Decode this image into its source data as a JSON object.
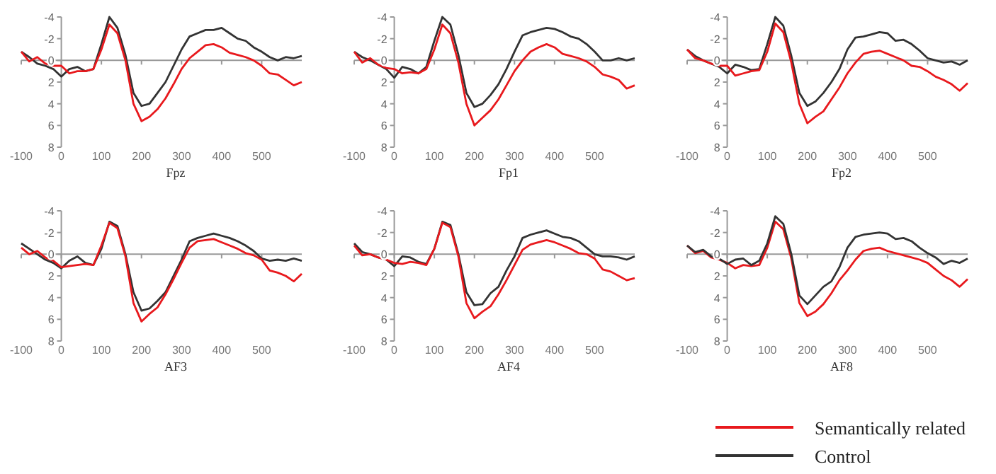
{
  "chart_data": [
    {
      "type": "line",
      "xlabel": "Fpz",
      "x": [
        -100,
        -80,
        -60,
        -40,
        -20,
        0,
        20,
        40,
        60,
        80,
        100,
        120,
        140,
        160,
        180,
        200,
        220,
        240,
        260,
        280,
        300,
        320,
        340,
        360,
        380,
        400,
        420,
        440,
        460,
        480,
        500,
        520,
        540,
        560,
        580,
        600
      ],
      "xlim": [
        -100,
        600
      ],
      "ylim": [
        8,
        -4
      ],
      "xticks": [
        -100,
        0,
        100,
        200,
        300,
        400,
        500
      ],
      "yticks": [
        -4,
        -2,
        0,
        2,
        4,
        6,
        8
      ],
      "series": [
        {
          "color": "#333333",
          "values": [
            -0.8,
            -0.3,
            0.3,
            0.5,
            0.8,
            1.5,
            0.8,
            0.6,
            1.0,
            0.8,
            -1.5,
            -4.0,
            -3.0,
            -0.5,
            3.0,
            4.2,
            4.0,
            3.0,
            2.0,
            0.5,
            -1.0,
            -2.2,
            -2.5,
            -2.8,
            -2.8,
            -3.0,
            -2.5,
            -2.0,
            -1.8,
            -1.2,
            -0.8,
            -0.3,
            0.0,
            -0.3,
            -0.2,
            -0.4
          ]
        },
        {
          "color": "#e8191d",
          "values": [
            -0.8,
            0.1,
            -0.3,
            0.3,
            0.5,
            0.5,
            1.2,
            1.0,
            1.0,
            0.8,
            -1.0,
            -3.3,
            -2.5,
            0.0,
            4.0,
            5.6,
            5.2,
            4.5,
            3.5,
            2.2,
            0.8,
            -0.2,
            -0.8,
            -1.4,
            -1.5,
            -1.2,
            -0.7,
            -0.5,
            -0.3,
            0.0,
            0.5,
            1.2,
            1.3,
            1.8,
            2.3,
            2.0
          ]
        }
      ]
    },
    {
      "type": "line",
      "xlabel": "Fp1",
      "x": [
        -100,
        -80,
        -60,
        -40,
        -20,
        0,
        20,
        40,
        60,
        80,
        100,
        120,
        140,
        160,
        180,
        200,
        220,
        240,
        260,
        280,
        300,
        320,
        340,
        360,
        380,
        400,
        420,
        440,
        460,
        480,
        500,
        520,
        540,
        560,
        580,
        600
      ],
      "xlim": [
        -100,
        600
      ],
      "ylim": [
        8,
        -4
      ],
      "xticks": [
        -100,
        0,
        100,
        200,
        300,
        400,
        500
      ],
      "yticks": [
        -4,
        -2,
        0,
        2,
        4,
        6,
        8
      ],
      "series": [
        {
          "color": "#333333",
          "values": [
            -0.8,
            -0.3,
            0.0,
            0.4,
            0.8,
            1.6,
            0.6,
            0.8,
            1.2,
            0.6,
            -1.8,
            -4.0,
            -3.3,
            -0.5,
            3.0,
            4.3,
            4.0,
            3.2,
            2.2,
            0.8,
            -0.8,
            -2.3,
            -2.6,
            -2.8,
            -3.0,
            -2.9,
            -2.6,
            -2.2,
            -2.0,
            -1.5,
            -0.8,
            0.0,
            0.0,
            -0.2,
            0.0,
            -0.2
          ]
        },
        {
          "color": "#e8191d",
          "values": [
            -0.8,
            0.2,
            -0.2,
            0.4,
            0.7,
            0.8,
            1.2,
            1.1,
            1.2,
            0.8,
            -1.0,
            -3.3,
            -2.5,
            0.2,
            4.0,
            6.0,
            5.3,
            4.6,
            3.6,
            2.3,
            1.0,
            0.0,
            -0.8,
            -1.2,
            -1.5,
            -1.2,
            -0.6,
            -0.4,
            -0.2,
            0.1,
            0.6,
            1.3,
            1.5,
            1.8,
            2.6,
            2.3
          ]
        }
      ]
    },
    {
      "type": "line",
      "xlabel": "Fp2",
      "x": [
        -100,
        -80,
        -60,
        -40,
        -20,
        0,
        20,
        40,
        60,
        80,
        100,
        120,
        140,
        160,
        180,
        200,
        220,
        240,
        260,
        280,
        300,
        320,
        340,
        360,
        380,
        400,
        420,
        440,
        460,
        480,
        500,
        520,
        540,
        560,
        580,
        600
      ],
      "xlim": [
        -100,
        600
      ],
      "ylim": [
        8,
        -4
      ],
      "xticks": [
        -100,
        0,
        100,
        200,
        300,
        400,
        500
      ],
      "yticks": [
        -4,
        -2,
        0,
        2,
        4,
        6,
        8
      ],
      "series": [
        {
          "color": "#333333",
          "values": [
            -1.0,
            -0.4,
            0.0,
            0.3,
            0.6,
            1.2,
            0.4,
            0.6,
            0.9,
            0.8,
            -1.5,
            -4.0,
            -3.2,
            -0.4,
            3.0,
            4.2,
            3.8,
            3.0,
            2.0,
            0.8,
            -1.0,
            -2.1,
            -2.2,
            -2.4,
            -2.6,
            -2.5,
            -1.8,
            -1.9,
            -1.5,
            -0.9,
            -0.2,
            0.0,
            0.2,
            0.1,
            0.4,
            0.0
          ]
        },
        {
          "color": "#e8191d",
          "values": [
            -1.0,
            -0.2,
            0.0,
            0.3,
            0.5,
            0.5,
            1.4,
            1.2,
            1.0,
            0.9,
            -0.8,
            -3.4,
            -2.6,
            0.2,
            4.0,
            5.8,
            5.2,
            4.7,
            3.6,
            2.5,
            1.2,
            0.2,
            -0.6,
            -0.8,
            -0.9,
            -0.6,
            -0.3,
            0.0,
            0.5,
            0.6,
            1.0,
            1.5,
            1.8,
            2.2,
            2.8,
            2.1
          ]
        }
      ]
    },
    {
      "type": "line",
      "xlabel": "AF3",
      "x": [
        -100,
        -80,
        -60,
        -40,
        -20,
        0,
        20,
        40,
        60,
        80,
        100,
        120,
        140,
        160,
        180,
        200,
        220,
        240,
        260,
        280,
        300,
        320,
        340,
        360,
        380,
        400,
        420,
        440,
        460,
        480,
        500,
        520,
        540,
        560,
        580,
        600
      ],
      "xlim": [
        -100,
        600
      ],
      "ylim": [
        8,
        -4
      ],
      "xticks": [
        -100,
        0,
        100,
        200,
        300,
        400,
        500
      ],
      "yticks": [
        -4,
        -2,
        0,
        2,
        4,
        6,
        8
      ],
      "series": [
        {
          "color": "#333333",
          "values": [
            -1.0,
            -0.5,
            0.0,
            0.5,
            0.8,
            1.3,
            0.6,
            0.2,
            0.8,
            1.0,
            -0.5,
            -3.0,
            -2.6,
            0.0,
            3.5,
            5.2,
            5.0,
            4.3,
            3.5,
            2.0,
            0.5,
            -1.2,
            -1.5,
            -1.7,
            -1.9,
            -1.7,
            -1.5,
            -1.2,
            -0.8,
            -0.3,
            0.4,
            0.6,
            0.5,
            0.6,
            0.4,
            0.6
          ]
        },
        {
          "color": "#e8191d",
          "values": [
            -0.6,
            0.0,
            -0.3,
            0.3,
            0.6,
            1.2,
            1.1,
            1.0,
            0.9,
            1.0,
            -0.8,
            -2.9,
            -2.4,
            0.2,
            4.5,
            6.2,
            5.5,
            4.9,
            3.7,
            2.3,
            0.8,
            -0.6,
            -1.2,
            -1.3,
            -1.4,
            -1.1,
            -0.8,
            -0.5,
            -0.1,
            0.1,
            0.5,
            1.5,
            1.7,
            2.0,
            2.5,
            1.8
          ]
        }
      ]
    },
    {
      "type": "line",
      "xlabel": "AF4",
      "x": [
        -100,
        -80,
        -60,
        -40,
        -20,
        0,
        20,
        40,
        60,
        80,
        100,
        120,
        140,
        160,
        180,
        200,
        220,
        240,
        260,
        280,
        300,
        320,
        340,
        360,
        380,
        400,
        420,
        440,
        460,
        480,
        500,
        520,
        540,
        560,
        580,
        600
      ],
      "xlim": [
        -100,
        600
      ],
      "ylim": [
        8,
        -4
      ],
      "xticks": [
        -100,
        0,
        100,
        200,
        300,
        400,
        500
      ],
      "yticks": [
        -4,
        -2,
        0,
        2,
        4,
        6,
        8
      ],
      "series": [
        {
          "color": "#333333",
          "values": [
            -1.0,
            -0.2,
            0.0,
            0.3,
            0.5,
            1.1,
            0.2,
            0.3,
            0.7,
            0.9,
            -0.5,
            -3.0,
            -2.7,
            0.0,
            3.5,
            4.7,
            4.6,
            3.6,
            3.0,
            1.5,
            0.2,
            -1.5,
            -1.8,
            -2.0,
            -2.2,
            -1.9,
            -1.6,
            -1.5,
            -1.2,
            -0.6,
            0.0,
            0.2,
            0.2,
            0.3,
            0.5,
            0.2
          ]
        },
        {
          "color": "#e8191d",
          "values": [
            -0.8,
            0.1,
            0.0,
            0.3,
            0.5,
            0.8,
            0.9,
            0.7,
            0.8,
            1.0,
            -0.5,
            -2.9,
            -2.5,
            0.2,
            4.5,
            5.9,
            5.3,
            4.8,
            3.7,
            2.4,
            1.0,
            -0.4,
            -0.9,
            -1.1,
            -1.3,
            -1.1,
            -0.8,
            -0.5,
            -0.1,
            0.0,
            0.4,
            1.4,
            1.6,
            2.0,
            2.4,
            2.2
          ]
        }
      ]
    },
    {
      "type": "line",
      "xlabel": "AF8",
      "x": [
        -100,
        -80,
        -60,
        -40,
        -20,
        0,
        20,
        40,
        60,
        80,
        100,
        120,
        140,
        160,
        180,
        200,
        220,
        240,
        260,
        280,
        300,
        320,
        340,
        360,
        380,
        400,
        420,
        440,
        460,
        480,
        500,
        520,
        540,
        560,
        580,
        600
      ],
      "xlim": [
        -100,
        600
      ],
      "ylim": [
        8,
        -4
      ],
      "xticks": [
        -100,
        0,
        100,
        200,
        300,
        400,
        500
      ],
      "yticks": [
        -4,
        -2,
        0,
        2,
        4,
        6,
        8
      ],
      "legend": "bottom right",
      "series": [
        {
          "name": "Semantically related",
          "color": "#e8191d",
          "values": [
            -0.8,
            -0.1,
            -0.3,
            0.3,
            0.5,
            0.8,
            1.3,
            1.0,
            1.1,
            1.0,
            -0.6,
            -3.0,
            -2.3,
            0.4,
            4.5,
            5.7,
            5.3,
            4.6,
            3.6,
            2.4,
            1.5,
            0.5,
            -0.3,
            -0.5,
            -0.6,
            -0.3,
            -0.1,
            0.1,
            0.3,
            0.5,
            0.8,
            1.4,
            2.0,
            2.4,
            3.0,
            2.3
          ]
        },
        {
          "name": "Control",
          "color": "#333333",
          "values": [
            -0.8,
            -0.2,
            -0.4,
            0.2,
            0.4,
            0.9,
            0.5,
            0.4,
            1.0,
            0.6,
            -1.0,
            -3.5,
            -2.8,
            0.0,
            3.8,
            4.6,
            3.8,
            3.0,
            2.5,
            1.2,
            -0.6,
            -1.6,
            -1.8,
            -1.9,
            -2.0,
            -1.9,
            -1.4,
            -1.5,
            -1.2,
            -0.6,
            -0.1,
            0.3,
            0.9,
            0.6,
            0.8,
            0.4
          ]
        }
      ]
    }
  ]
}
